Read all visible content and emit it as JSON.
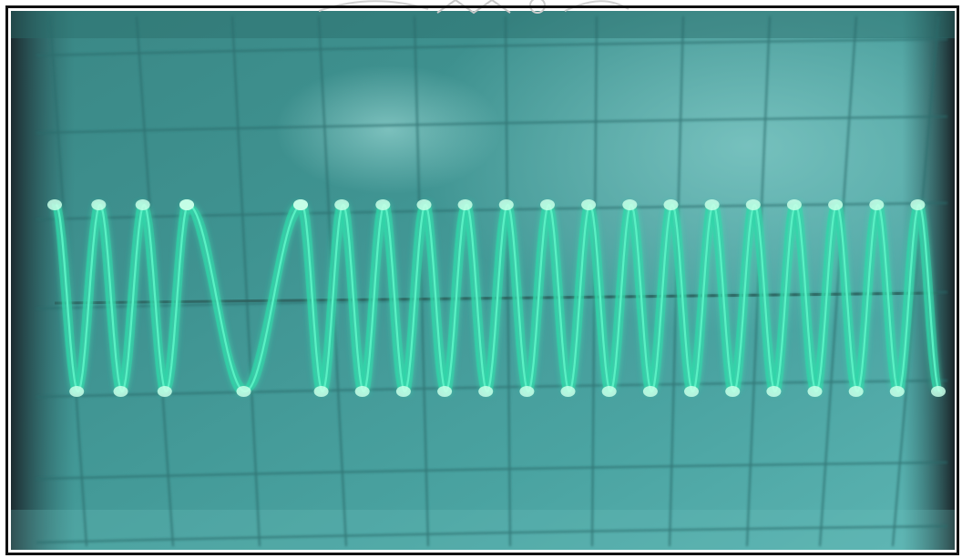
{
  "image": {
    "subject": "oscilloscope-screen-photo",
    "colors": {
      "screen_base": "#3a8e8c",
      "screen_light": "#5fb2b0",
      "screen_dark": "#1f5e5f",
      "bezel": "#23343a",
      "grid_line": "#2a6a6a",
      "trace": "#5af0c4",
      "trace_glow": "#2fd6a8",
      "trace_dot": "#c8ffe8",
      "frame": "#111111",
      "paper": "#ffffff"
    },
    "waveform": {
      "description_type": "frequency-shift-keyed-sine",
      "segments": [
        {
          "cycles": 3,
          "relative_frequency": 1.0
        },
        {
          "cycles": 1,
          "relative_frequency": 0.5
        },
        {
          "cycles": 17,
          "relative_frequency": 1.05
        }
      ],
      "peak_level": 0.72,
      "trough_level": -0.73
    },
    "graticule": {
      "vertical_divisions": 10,
      "horizontal_divisions": 6
    }
  }
}
